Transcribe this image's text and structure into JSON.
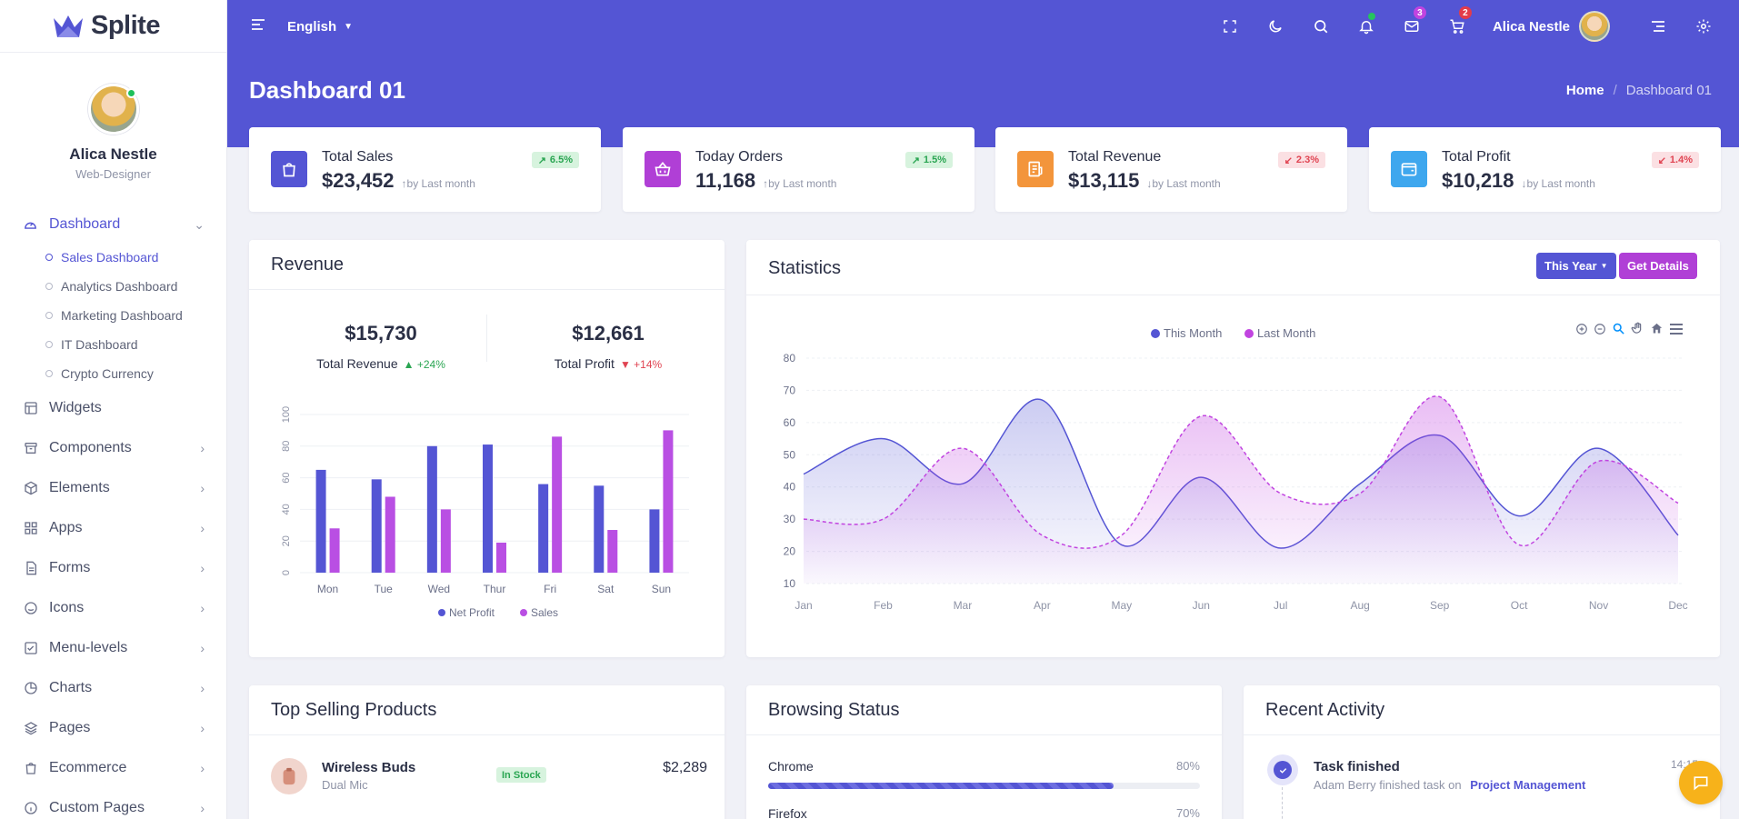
{
  "app": {
    "name": "Splite"
  },
  "profile": {
    "name": "Alica Nestle",
    "role": "Web-Designer"
  },
  "sidebar": {
    "dashboard_label": "Dashboard",
    "dashboard_children": [
      "Sales Dashboard",
      "Analytics Dashboard",
      "Marketing Dashboard",
      "IT Dashboard",
      "Crypto Currency"
    ],
    "items": [
      "Widgets",
      "Components",
      "Elements",
      "Apps",
      "Forms",
      "Icons",
      "Menu-levels",
      "Charts",
      "Pages",
      "Ecommerce",
      "Custom Pages"
    ]
  },
  "topbar": {
    "language": "English",
    "mail_count": "3",
    "cart_count": "2",
    "user_name": "Alica Nestle"
  },
  "page": {
    "title": "Dashboard 01",
    "breadcrumb_home": "Home",
    "breadcrumb_current": "Dashboard 01"
  },
  "stats": [
    {
      "title": "Total Sales",
      "value": "$23,452",
      "note": "by Last month",
      "change": "6.5%",
      "dir": "up",
      "color": "#5455d4"
    },
    {
      "title": "Today Orders",
      "value": "11,168",
      "note": "by Last month",
      "change": "1.5%",
      "dir": "up",
      "color": "#b03fd6"
    },
    {
      "title": "Total Revenue",
      "value": "$13,115",
      "note": "by Last month",
      "change": "2.3%",
      "dir": "down",
      "color": "#f3953b"
    },
    {
      "title": "Total Profit",
      "value": "$10,218",
      "note": "by Last month",
      "change": "1.4%",
      "dir": "down",
      "color": "#3ea7ee"
    }
  ],
  "revenue": {
    "title": "Revenue",
    "total_revenue_value": "$15,730",
    "total_revenue_label": "Total Revenue",
    "total_revenue_change": "+24%",
    "total_profit_value": "$12,661",
    "total_profit_label": "Total Profit",
    "total_profit_change": "+14%"
  },
  "statistics": {
    "title": "Statistics",
    "period": "This Year",
    "details_label": "Get Details"
  },
  "top_products": {
    "title": "Top Selling Products",
    "items": [
      {
        "name": "Wireless Buds",
        "sub": "Dual Mic",
        "status": "In Stock",
        "price": "$2,289"
      }
    ]
  },
  "browsing": {
    "title": "Browsing Status",
    "items": [
      {
        "name": "Chrome",
        "percent": "80%",
        "value": 80
      },
      {
        "name": "Firefox",
        "percent": "70%",
        "value": 70
      }
    ]
  },
  "activity": {
    "title": "Recent Activity",
    "items": [
      {
        "title": "Task finished",
        "text": "Adam Berry finished task on",
        "link": "Project Management",
        "time": "14:15"
      }
    ]
  },
  "colors": {
    "primary": "#5455d4",
    "secondary": "#b94fe3",
    "success": "#2aa552",
    "danger": "#e04452"
  },
  "chart_data": [
    {
      "type": "bar",
      "categories": [
        "Mon",
        "Tue",
        "Wed",
        "Thur",
        "Fri",
        "Sat",
        "Sun"
      ],
      "series": [
        {
          "name": "Net Profit",
          "values": [
            65,
            59,
            80,
            81,
            56,
            55,
            40
          ],
          "color": "#5455d4"
        },
        {
          "name": "Sales",
          "values": [
            28,
            48,
            40,
            19,
            86,
            27,
            90
          ],
          "color": "#b94fe3"
        }
      ],
      "ylim": [
        0,
        100
      ],
      "yticks": [
        0,
        20,
        40,
        60,
        80,
        100
      ],
      "legend": "bottom"
    },
    {
      "type": "area",
      "categories": [
        "Jan",
        "Feb",
        "Mar",
        "Apr",
        "May",
        "Jun",
        "Jul",
        "Aug",
        "Sep",
        "Oct",
        "Nov",
        "Dec"
      ],
      "series": [
        {
          "name": "This Month",
          "values": [
            44,
            55,
            41,
            67,
            22,
            43,
            21,
            41,
            56,
            31,
            52,
            25
          ],
          "color": "#5455d4"
        },
        {
          "name": "Last Month",
          "values": [
            30,
            30,
            52,
            25,
            25,
            62,
            38,
            38,
            68,
            22,
            48,
            35
          ],
          "color": "#c144e0",
          "dashed": true
        }
      ],
      "ylim": [
        10,
        80
      ],
      "yticks": [
        10,
        20,
        30,
        40,
        50,
        60,
        70,
        80
      ],
      "legend": "top-center",
      "grid": true
    }
  ]
}
